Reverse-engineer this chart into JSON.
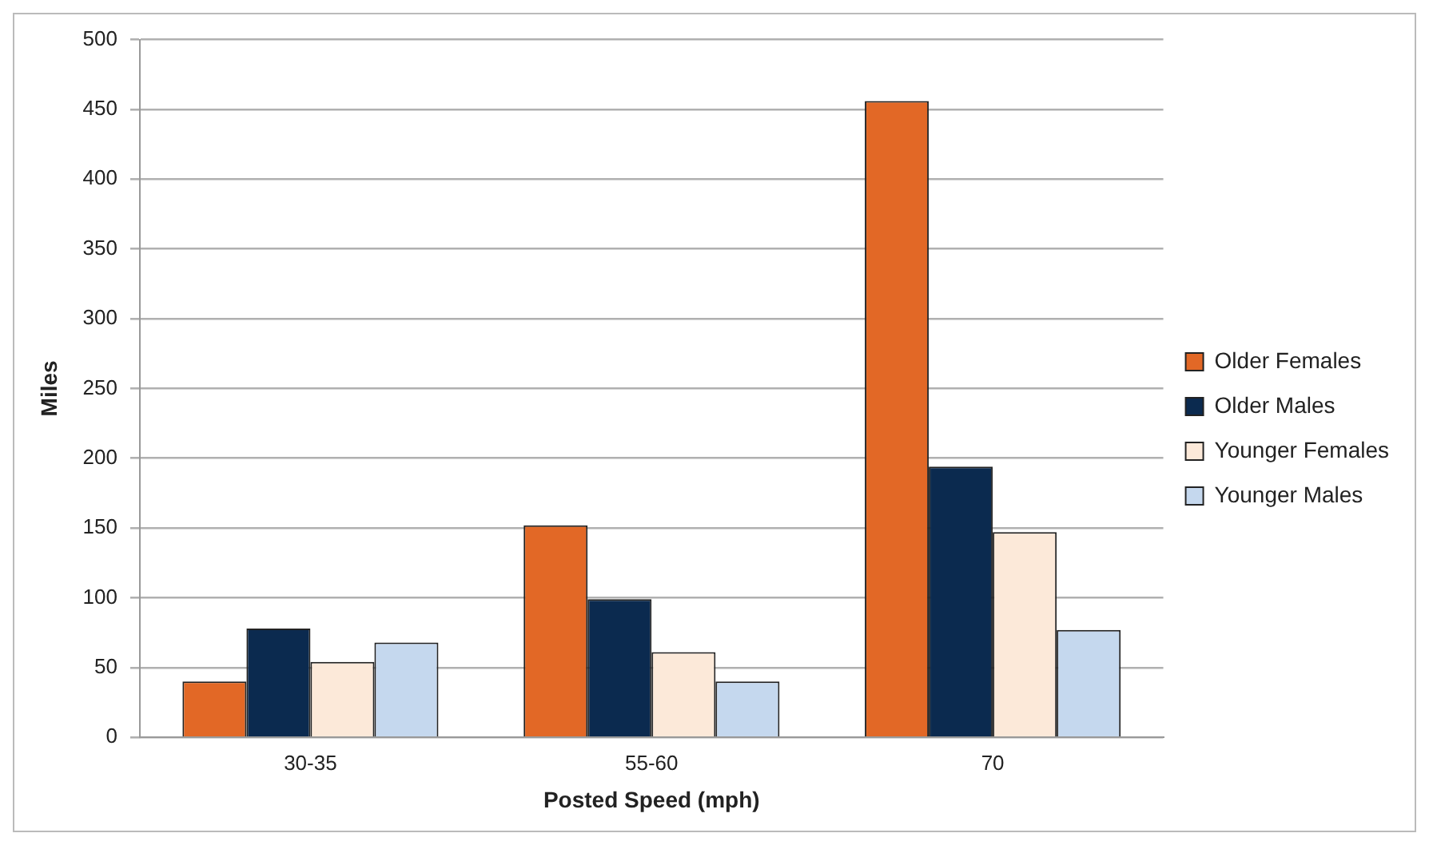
{
  "chart_data": {
    "type": "bar",
    "xlabel": "Posted Speed (mph)",
    "ylabel": "Miles",
    "categories": [
      "30-35",
      "55-60",
      "70"
    ],
    "series": [
      {
        "name": "Older Females",
        "color": "#e26826",
        "values": [
          40,
          152,
          456
        ]
      },
      {
        "name": "Older Males",
        "color": "#0b2a4f",
        "values": [
          78,
          99,
          194
        ]
      },
      {
        "name": "Younger Females",
        "color": "#fce9d9",
        "values": [
          54,
          61,
          147
        ]
      },
      {
        "name": "Younger Males",
        "color": "#c5d8ee",
        "values": [
          68,
          40,
          77
        ]
      }
    ],
    "ylim": [
      0,
      500
    ],
    "yticks": [
      0,
      50,
      100,
      150,
      200,
      250,
      300,
      350,
      400,
      450,
      500
    ],
    "grid": "y",
    "legend": "right"
  }
}
